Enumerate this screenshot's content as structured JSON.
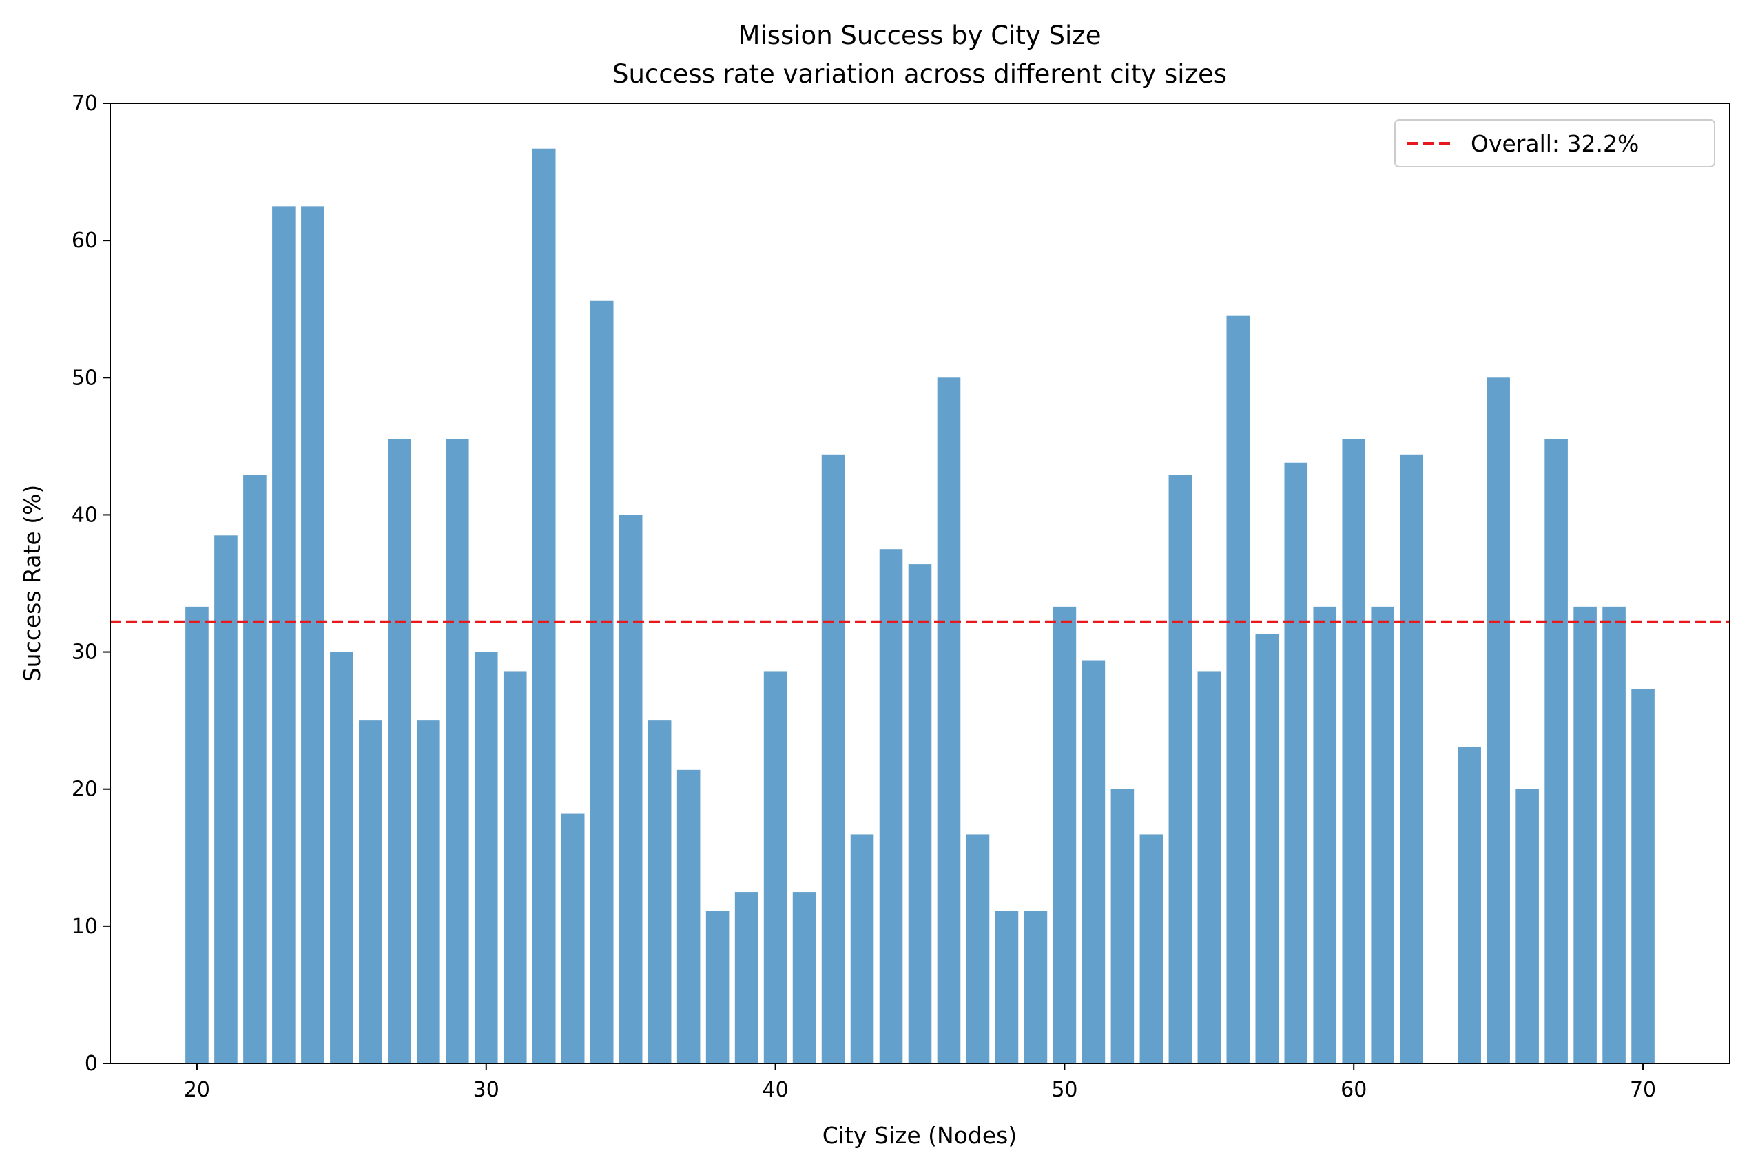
{
  "chart_data": {
    "type": "bar",
    "title": "Mission Success by City Size",
    "subtitle": "Success rate variation across different city sizes",
    "xlabel": "City Size (Nodes)",
    "ylabel": "Success Rate (%)",
    "xlim": [
      17,
      73
    ],
    "ylim": [
      0,
      70
    ],
    "xticks": [
      20,
      30,
      40,
      50,
      60,
      70
    ],
    "yticks": [
      0,
      10,
      20,
      30,
      40,
      50,
      60,
      70
    ],
    "bar_color": "#63a0cb",
    "grid": false,
    "x": [
      20,
      21,
      22,
      23,
      24,
      25,
      26,
      27,
      28,
      29,
      30,
      31,
      32,
      33,
      34,
      35,
      36,
      37,
      38,
      39,
      40,
      41,
      42,
      43,
      44,
      45,
      46,
      47,
      48,
      49,
      50,
      51,
      52,
      53,
      54,
      55,
      56,
      57,
      58,
      59,
      60,
      61,
      62,
      64,
      65,
      66,
      67,
      68,
      69,
      70
    ],
    "values": [
      33.3,
      38.5,
      42.9,
      62.5,
      62.5,
      30.0,
      25.0,
      45.5,
      25.0,
      45.5,
      30.0,
      28.6,
      66.7,
      18.2,
      55.6,
      40.0,
      25.0,
      21.4,
      11.1,
      12.5,
      28.6,
      12.5,
      44.4,
      16.7,
      37.5,
      36.4,
      50.0,
      16.7,
      11.1,
      11.1,
      33.3,
      29.4,
      20.0,
      16.7,
      42.9,
      28.6,
      54.5,
      31.3,
      43.8,
      33.3,
      45.5,
      33.3,
      44.4,
      23.1,
      50.0,
      20.0,
      45.5,
      33.3,
      33.3,
      27.3
    ],
    "reference_line": {
      "value": 32.2,
      "label": "Overall: 32.2%",
      "color": "#e8191c",
      "style": "dashed"
    },
    "legend": {
      "position": "top-right",
      "entries": [
        "Overall: 32.2%"
      ]
    }
  }
}
